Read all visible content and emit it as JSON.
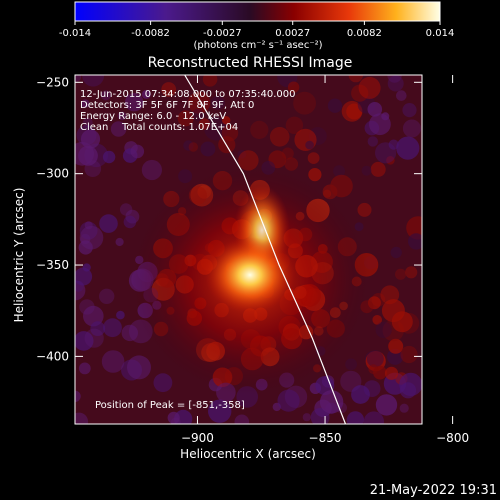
{
  "chart_data": {
    "type": "heatmap",
    "title": "Reconstructed RHESSI Image",
    "xlabel": "Heliocentric X (arcsec)",
    "ylabel": "Heliocentric Y (arcsec)",
    "xlim": [
      -948,
      -812
    ],
    "ylim": [
      -437,
      -246
    ],
    "x_ticks": [
      -900,
      -850,
      -800
    ],
    "y_ticks": [
      -250,
      -300,
      -350,
      -400
    ],
    "colorbar": {
      "ticks": [
        "-0.014",
        "-0.0082",
        "-0.0027",
        "0.0027",
        "0.0082",
        "0.014"
      ],
      "range": [
        -0.014,
        0.014
      ],
      "units_label": "(photons cm⁻² s⁻¹ asec⁻²)",
      "colors": [
        "#0000ff",
        "#4b1a8c",
        "#2a0a24",
        "#8a0000",
        "#e8380a",
        "#ffb11c",
        "#ffffe6"
      ]
    },
    "annotations": {
      "time_range": "12-Jun-2015 07:34:08.000 to 07:35:40.000",
      "detectors": "Detectors: 3F 5F 6F 7F 8F 9F, Att 0",
      "energy": "Energy Range: 6.0 - 12.0 keV",
      "method": "Clean",
      "total_counts": "Total counts: 1.07E+04",
      "peak": "Position of Peak = [-851,-358]"
    },
    "peak": {
      "x": -851,
      "y": -358
    },
    "limb_line": {
      "x": [
        -905,
        -882,
        -868,
        -855,
        -842
      ],
      "y": [
        -246,
        -300,
        -350,
        -390,
        -437
      ]
    },
    "grid": false
  },
  "footer": {
    "timestamp": "21-May-2022 19:31"
  }
}
